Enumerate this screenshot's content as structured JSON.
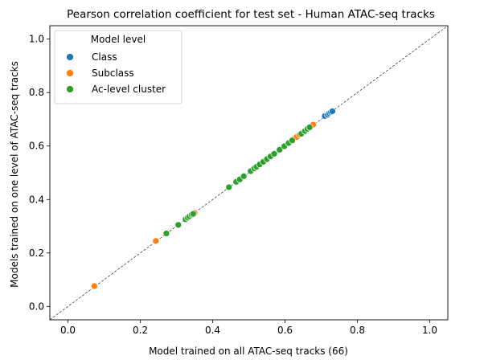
{
  "chart_data": {
    "type": "scatter",
    "title": "Pearson correlation coefficient for test set - Human ATAC-seq tracks",
    "xlabel": "Model trained on all ATAC-seq tracks (66)",
    "ylabel": "Models trained on one level of ATAC-seq tracks",
    "xlim": [
      -0.05,
      1.05
    ],
    "ylim": [
      -0.05,
      1.05
    ],
    "x_ticks": [
      "0.0",
      "0.2",
      "0.4",
      "0.6",
      "0.8",
      "1.0"
    ],
    "y_ticks": [
      "0.0",
      "0.2",
      "0.4",
      "0.6",
      "0.8",
      "1.0"
    ],
    "grid": false,
    "reference_line": "y = x",
    "legend": {
      "title": "Model level",
      "placement": "top-left"
    },
    "series": [
      {
        "name": "Class",
        "color": "#1f77b4",
        "points": [
          [
            0.71,
            0.712
          ],
          [
            0.718,
            0.717
          ],
          [
            0.722,
            0.723
          ],
          [
            0.727,
            0.727
          ],
          [
            0.731,
            0.73
          ]
        ]
      },
      {
        "name": "Subclass",
        "color": "#ff7f0e",
        "points": [
          [
            0.073,
            0.076
          ],
          [
            0.243,
            0.245
          ],
          [
            0.35,
            0.35
          ],
          [
            0.524,
            0.525
          ],
          [
            0.555,
            0.556
          ],
          [
            0.625,
            0.628
          ],
          [
            0.632,
            0.634
          ],
          [
            0.64,
            0.642
          ],
          [
            0.65,
            0.652
          ],
          [
            0.678,
            0.68
          ]
        ]
      },
      {
        "name": "Ac-level cluster",
        "color": "#2ca02c",
        "points": [
          [
            0.272,
            0.273
          ],
          [
            0.305,
            0.305
          ],
          [
            0.325,
            0.326
          ],
          [
            0.331,
            0.332
          ],
          [
            0.336,
            0.337
          ],
          [
            0.342,
            0.343
          ],
          [
            0.346,
            0.346
          ],
          [
            0.445,
            0.446
          ],
          [
            0.465,
            0.466
          ],
          [
            0.475,
            0.475
          ],
          [
            0.486,
            0.487
          ],
          [
            0.505,
            0.506
          ],
          [
            0.515,
            0.516
          ],
          [
            0.521,
            0.522
          ],
          [
            0.53,
            0.531
          ],
          [
            0.54,
            0.541
          ],
          [
            0.55,
            0.551
          ],
          [
            0.56,
            0.561
          ],
          [
            0.57,
            0.571
          ],
          [
            0.585,
            0.586
          ],
          [
            0.598,
            0.599
          ],
          [
            0.61,
            0.611
          ],
          [
            0.62,
            0.621
          ],
          [
            0.645,
            0.646
          ],
          [
            0.655,
            0.656
          ],
          [
            0.662,
            0.664
          ],
          [
            0.668,
            0.67
          ]
        ]
      }
    ]
  }
}
